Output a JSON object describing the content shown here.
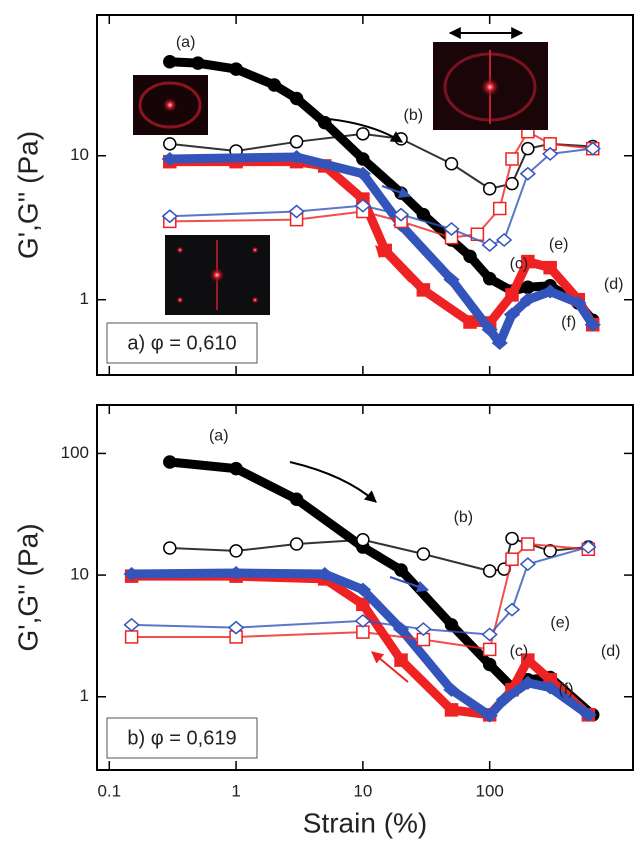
{
  "chart_data": [
    {
      "type": "scatter",
      "xscale": "log",
      "yscale": "log",
      "ylabel": "G',G'' (Pa)",
      "phase_label": "a) φ = 0,610",
      "xlim": [
        0.08,
        1350
      ],
      "ylim": [
        0.3,
        95
      ],
      "xticks": [
        0.1,
        1,
        10,
        100
      ],
      "show_xtick_labels": false,
      "yticks": [
        1,
        10
      ],
      "series": [
        {
          "color": "#000000",
          "marker": "circle",
          "filled": true,
          "x": [
            0.3,
            0.5,
            1,
            2,
            3,
            5,
            10,
            20,
            30,
            50,
            70,
            100,
            150,
            200,
            300,
            500,
            650
          ],
          "values": [
            45,
            44,
            40,
            31,
            25,
            17,
            9.5,
            5.5,
            3.9,
            2.6,
            2.0,
            1.4,
            1.15,
            1.22,
            1.25,
            0.95,
            0.72
          ]
        },
        {
          "color": "#000000",
          "marker": "circle",
          "filled": false,
          "x": [
            0.3,
            1,
            3,
            10,
            20,
            50,
            100,
            150,
            200,
            300,
            650
          ],
          "values": [
            12.1,
            10.8,
            12.5,
            14.2,
            13.1,
            8.8,
            5.9,
            6.4,
            11.2,
            12.1,
            11.6
          ]
        },
        {
          "color": "#ee2222",
          "marker": "square",
          "filled": true,
          "x": [
            0.3,
            1,
            3,
            5,
            10,
            15,
            30,
            70,
            100,
            150,
            200,
            300,
            500,
            650
          ],
          "values": [
            9.1,
            9.1,
            9.1,
            8.5,
            5.0,
            2.2,
            1.17,
            0.7,
            0.69,
            1.08,
            1.84,
            1.67,
            1.0,
            0.67
          ]
        },
        {
          "color": "#3355bb",
          "marker": "diamond",
          "filled": true,
          "x": [
            0.3,
            3,
            10,
            20,
            50,
            100,
            120,
            150,
            200,
            300,
            500,
            650
          ],
          "values": [
            9.5,
            9.8,
            7.5,
            3.3,
            1.38,
            0.62,
            0.5,
            0.79,
            1.0,
            1.14,
            0.95,
            0.67
          ]
        },
        {
          "color": "#ee2222",
          "marker": "square",
          "filled": false,
          "x": [
            0.3,
            3,
            10,
            20,
            50,
            80,
            120,
            150,
            200,
            300,
            650
          ],
          "values": [
            3.5,
            3.6,
            4.1,
            3.5,
            2.7,
            2.85,
            4.3,
            9.5,
            14.7,
            12.1,
            11.2
          ]
        },
        {
          "color": "#3355bb",
          "marker": "diamond",
          "filled": false,
          "x": [
            0.3,
            3,
            10,
            20,
            50,
            100,
            130,
            200,
            300,
            650
          ],
          "values": [
            3.8,
            4.1,
            4.5,
            3.9,
            3.1,
            2.4,
            2.6,
            7.5,
            10.3,
            11.2
          ]
        }
      ],
      "annotations": [
        {
          "text": "(a)",
          "x": 0.4,
          "y": 61
        },
        {
          "text": "(b)",
          "x": 25,
          "y": 19
        },
        {
          "text": "(c)",
          "x": 170,
          "y": 1.76
        },
        {
          "text": "(e)",
          "x": 350,
          "y": 2.4
        },
        {
          "text": "(d)",
          "x": 950,
          "y": 1.27
        },
        {
          "text": "(f)",
          "x": 420,
          "y": 0.69
        }
      ]
    },
    {
      "type": "scatter",
      "xscale": "log",
      "yscale": "log",
      "ylabel": "G',G'' (Pa)",
      "xlabel": "Strain (%)",
      "phase_label": "b) φ = 0,619",
      "xlim": [
        0.08,
        1350
      ],
      "ylim": [
        0.25,
        250
      ],
      "xticks": [
        0.1,
        1,
        10,
        100
      ],
      "show_xtick_labels": true,
      "yticks": [
        1,
        10,
        100
      ],
      "series": [
        {
          "color": "#000000",
          "marker": "circle",
          "filled": true,
          "x": [
            0.3,
            1,
            3,
            10,
            20,
            50,
            100,
            150,
            200,
            300,
            650
          ],
          "values": [
            85,
            75,
            42,
            17,
            11,
            3.9,
            1.84,
            1.2,
            1.38,
            1.44,
            0.71
          ]
        },
        {
          "color": "#000000",
          "marker": "circle",
          "filled": false,
          "x": [
            0.3,
            1,
            3,
            10,
            30,
            100,
            130,
            150,
            300,
            600
          ],
          "values": [
            16.7,
            15.8,
            18,
            19.5,
            14.9,
            10.8,
            11.2,
            20,
            15.8,
            17
          ]
        },
        {
          "color": "#ee2222",
          "marker": "square",
          "filled": true,
          "x": [
            0.15,
            1,
            5,
            10,
            20,
            50,
            100,
            150,
            200,
            300,
            600
          ],
          "values": [
            9.8,
            9.8,
            9.3,
            5.75,
            2.0,
            0.78,
            0.71,
            1.14,
            2.0,
            1.38,
            0.71
          ]
        },
        {
          "color": "#3355bb",
          "marker": "diamond",
          "filled": true,
          "x": [
            0.15,
            1,
            5,
            10,
            20,
            50,
            100,
            130,
            200,
            300,
            600
          ],
          "values": [
            10.2,
            10.4,
            10.2,
            7.6,
            3.6,
            1.14,
            0.7,
            0.95,
            1.3,
            1.19,
            0.71
          ]
        },
        {
          "color": "#ee2222",
          "marker": "square",
          "filled": false,
          "x": [
            0.15,
            1,
            10,
            30,
            100,
            150,
            200,
            600
          ],
          "values": [
            3.1,
            3.1,
            3.4,
            2.95,
            2.45,
            13.5,
            18,
            16.3
          ]
        },
        {
          "color": "#3355bb",
          "marker": "diamond",
          "filled": false,
          "x": [
            0.15,
            1,
            10,
            30,
            100,
            150,
            200,
            600
          ],
          "values": [
            3.9,
            3.7,
            4.2,
            3.6,
            3.25,
            5.2,
            12.3,
            17
          ]
        }
      ],
      "annotations": [
        {
          "text": "(a)",
          "x": 0.73,
          "y": 138
        },
        {
          "text": "(b)",
          "x": 62,
          "y": 29.5
        },
        {
          "text": "(c)",
          "x": 170,
          "y": 2.35
        },
        {
          "text": "(e)",
          "x": 360,
          "y": 4
        },
        {
          "text": "(d)",
          "x": 900,
          "y": 2.35
        },
        {
          "text": "(f)",
          "x": 400,
          "y": 1.14
        }
      ]
    }
  ]
}
